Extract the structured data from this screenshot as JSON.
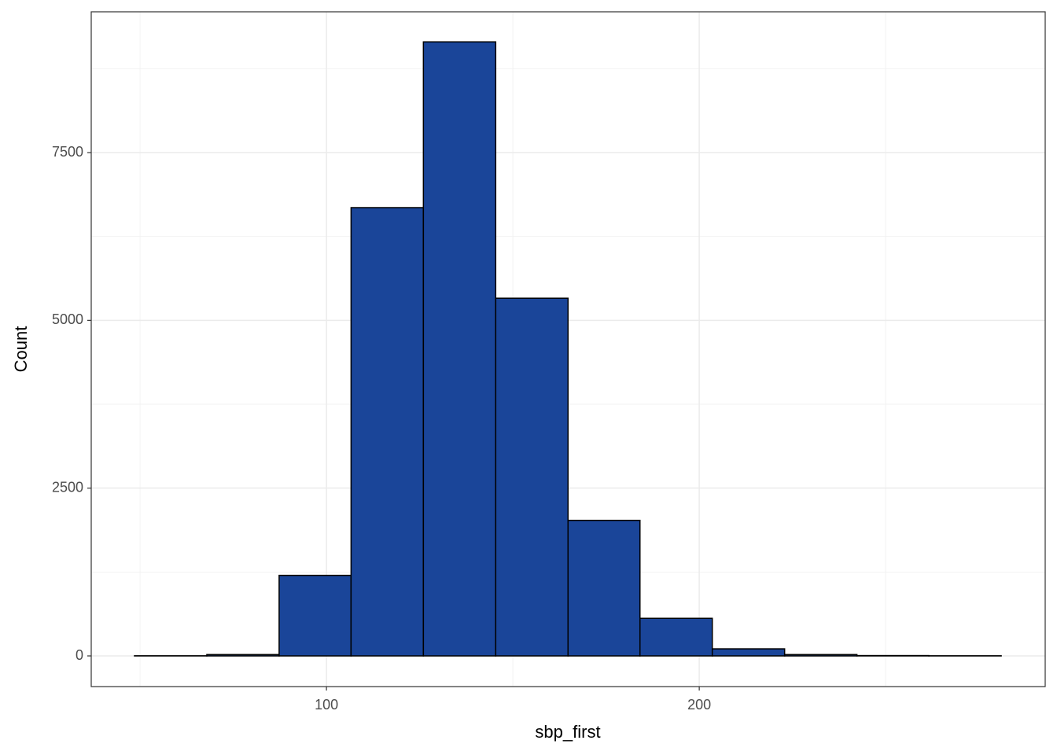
{
  "chart_data": {
    "type": "histogram",
    "x_label": "sbp_first",
    "y_label": "Count",
    "bins": [
      48.5,
      67.9,
      87.3,
      106.6,
      126.0,
      145.4,
      164.8,
      184.1,
      203.5,
      222.9,
      242.3,
      261.6,
      281.0
    ],
    "values": [
      2,
      20,
      1200,
      6680,
      9150,
      5330,
      2020,
      560,
      105,
      20,
      5,
      2
    ],
    "color": "#1a4599",
    "xlim": [
      36.9,
      292.8
    ],
    "xticks": [
      100,
      200
    ],
    "ylim": [
      -457,
      9598
    ],
    "yticks": [
      0,
      2500,
      5000,
      7500
    ],
    "grid": true
  }
}
